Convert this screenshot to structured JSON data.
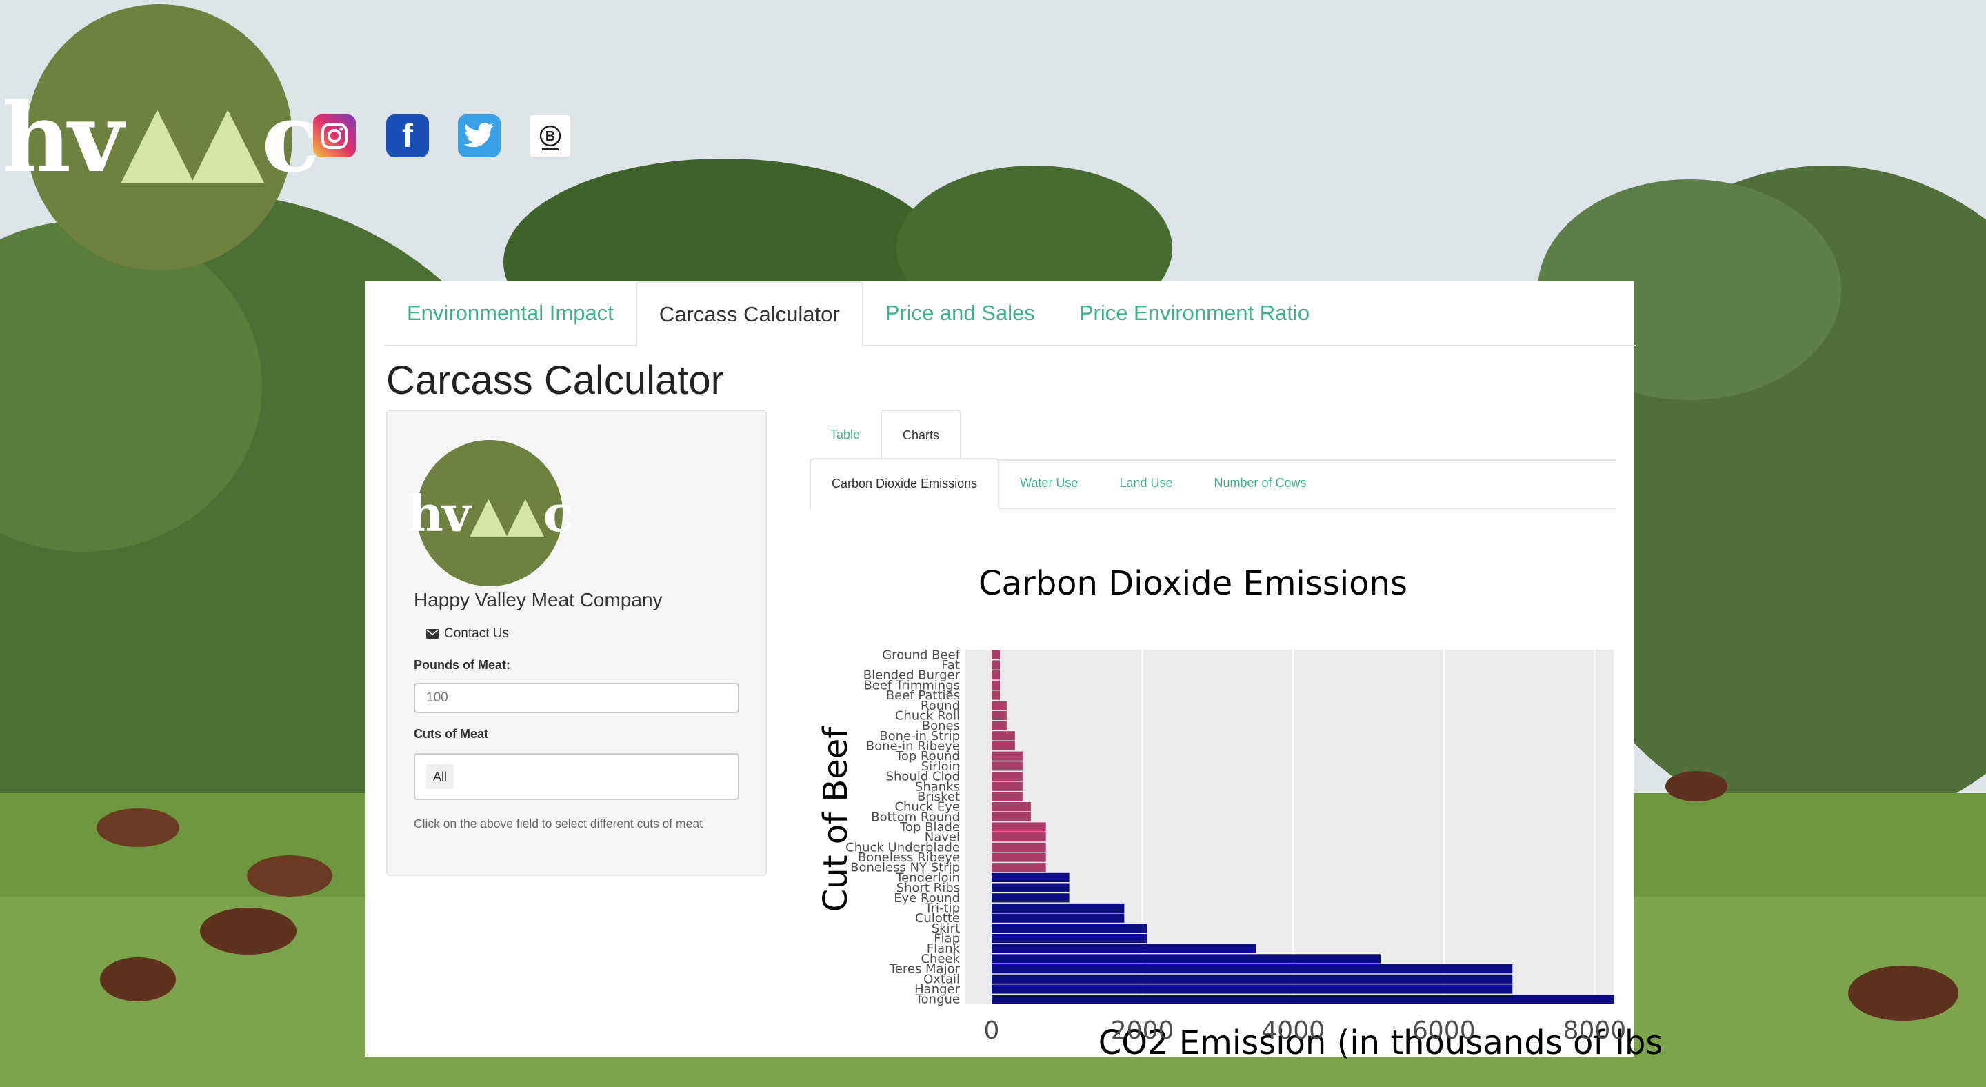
{
  "brand": {
    "logo_text": "hvmc",
    "company_name": "Happy Valley Meat Company"
  },
  "social": [
    {
      "icon": "instagram-icon"
    },
    {
      "icon": "facebook-icon",
      "glyph": "f"
    },
    {
      "icon": "twitter-icon"
    },
    {
      "icon": "b-corp-icon",
      "glyph": "B"
    }
  ],
  "nav": {
    "tabs": [
      {
        "label": "Environmental Impact",
        "active": false
      },
      {
        "label": "Carcass Calculator",
        "active": true
      },
      {
        "label": "Price and Sales",
        "active": false
      },
      {
        "label": "Price Environment Ratio",
        "active": false
      }
    ]
  },
  "page": {
    "title": "Carcass Calculator"
  },
  "sidebar": {
    "contact_label": "Contact Us",
    "pounds_label": "Pounds of Meat:",
    "pounds_placeholder": "100",
    "cuts_label": "Cuts of Meat",
    "cuts_selected": "All",
    "hint": "Click on the above field to select different cuts of meat"
  },
  "view_tabs": [
    {
      "label": "Table",
      "active": false
    },
    {
      "label": "Charts",
      "active": true
    }
  ],
  "chart_tabs": [
    {
      "label": "Carbon Dioxide Emissions",
      "active": true
    },
    {
      "label": "Water Use",
      "active": false
    },
    {
      "label": "Land Use",
      "active": false
    },
    {
      "label": "Number of Cows",
      "active": false
    }
  ],
  "colors": {
    "accent": "#3fb08a",
    "logo_green": "#6e8140",
    "bar_low": "#a93f66",
    "bar_high": "#0c0c85",
    "plot_bg": "#ebebeb"
  },
  "chart_data": {
    "type": "bar",
    "orientation": "horizontal",
    "title": "Carbon Dioxide Emissions",
    "xlabel": "CO2 Emission (in thousands of lbs",
    "ylabel": "Cut of Beef",
    "xlim": [
      0,
      8600
    ],
    "xticks": [
      0,
      2000,
      4000,
      6000,
      8000
    ],
    "grid": true,
    "categories": [
      "Ground Beef",
      "Fat",
      "Blended Burger",
      "Beef Trimmings",
      "Beef Patties",
      "Round",
      "Chuck Roll",
      "Bones",
      "Bone-in Strip",
      "Bone-in Ribeye",
      "Top Round",
      "Sirloin",
      "Should Clod",
      "Shanks",
      "Brisket",
      "Chuck Eye",
      "Bottom Round",
      "Top Blade",
      "Navel",
      "Chuck Underblade",
      "Boneless Ribeye",
      "Boneless NY Strip",
      "Tenderloin",
      "Short Ribs",
      "Eye Round",
      "Tri-tip",
      "Culotte",
      "Skirt",
      "Flap",
      "Flank",
      "Cheek",
      "Teres Major",
      "Oxtail",
      "Hanger",
      "Tongue"
    ],
    "values": [
      110,
      110,
      110,
      110,
      110,
      200,
      200,
      200,
      310,
      310,
      410,
      410,
      410,
      410,
      410,
      520,
      520,
      720,
      720,
      720,
      720,
      720,
      1030,
      1030,
      1030,
      1760,
      1760,
      2060,
      2060,
      3510,
      5160,
      6910,
      6910,
      6910,
      8260
    ],
    "series_colors": {
      "low": "#a93f66",
      "high": "#0c0c85"
    },
    "color_split_index": 22
  }
}
